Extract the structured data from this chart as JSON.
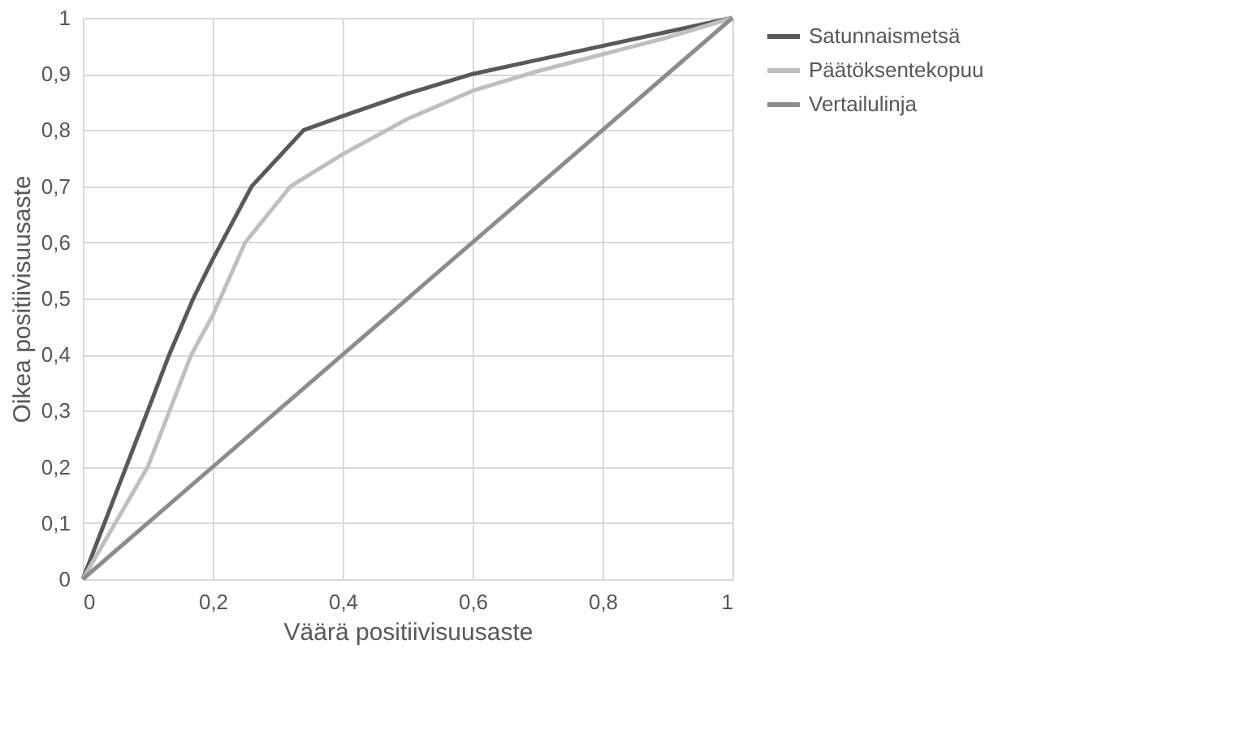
{
  "chart_data": {
    "type": "line",
    "xlabel": "Väärä positiivisuusaste",
    "ylabel": "Oikea positiivisuusaste",
    "series": [
      {
        "name": "Satunnaismetsä",
        "color": "#595959",
        "x": [
          0,
          0.05,
          0.1,
          0.133,
          0.17,
          0.2,
          0.26,
          0.3,
          0.34,
          0.4,
          0.5,
          0.6,
          0.7,
          0.8,
          0.9,
          1
        ],
        "values": [
          0,
          0.15,
          0.3,
          0.4,
          0.5,
          0.57,
          0.7,
          0.75,
          0.8,
          0.825,
          0.865,
          0.9,
          0.925,
          0.95,
          0.975,
          1
        ]
      },
      {
        "name": "Päätöksentekopuu",
        "color": "#bfbfbf",
        "x": [
          0,
          0.05,
          0.1,
          0.167,
          0.2,
          0.25,
          0.32,
          0.4,
          0.5,
          0.6,
          0.7,
          0.8,
          0.9,
          1
        ],
        "values": [
          0,
          0.1,
          0.2,
          0.4,
          0.47,
          0.6,
          0.7,
          0.757,
          0.82,
          0.87,
          0.905,
          0.935,
          0.965,
          1
        ]
      },
      {
        "name": "Vertailulinja",
        "color": "#8c8c8c",
        "x": [
          0,
          1
        ],
        "values": [
          0,
          1
        ]
      }
    ],
    "xlim": [
      0,
      1
    ],
    "ylim": [
      0,
      1
    ],
    "xticks": [
      0,
      {
        "value": 0.2,
        "label": "0,2"
      },
      {
        "value": 0.4,
        "label": "0,4"
      },
      {
        "value": 0.6,
        "label": "0,6"
      },
      {
        "value": 0.8,
        "label": "0,8"
      },
      1
    ],
    "yticks": [
      0,
      {
        "value": 0.1,
        "label": "0,1"
      },
      {
        "value": 0.2,
        "label": "0,2"
      },
      {
        "value": 0.3,
        "label": "0,3"
      },
      {
        "value": 0.4,
        "label": "0,4"
      },
      {
        "value": 0.5,
        "label": "0,5"
      },
      {
        "value": 0.6,
        "label": "0,6"
      },
      {
        "value": 0.7,
        "label": "0,7"
      },
      {
        "value": 0.8,
        "label": "0,8"
      },
      {
        "value": 0.9,
        "label": "0,9"
      },
      1
    ],
    "grid": true,
    "legend": "right",
    "marker": "none",
    "line_style": "solid"
  }
}
